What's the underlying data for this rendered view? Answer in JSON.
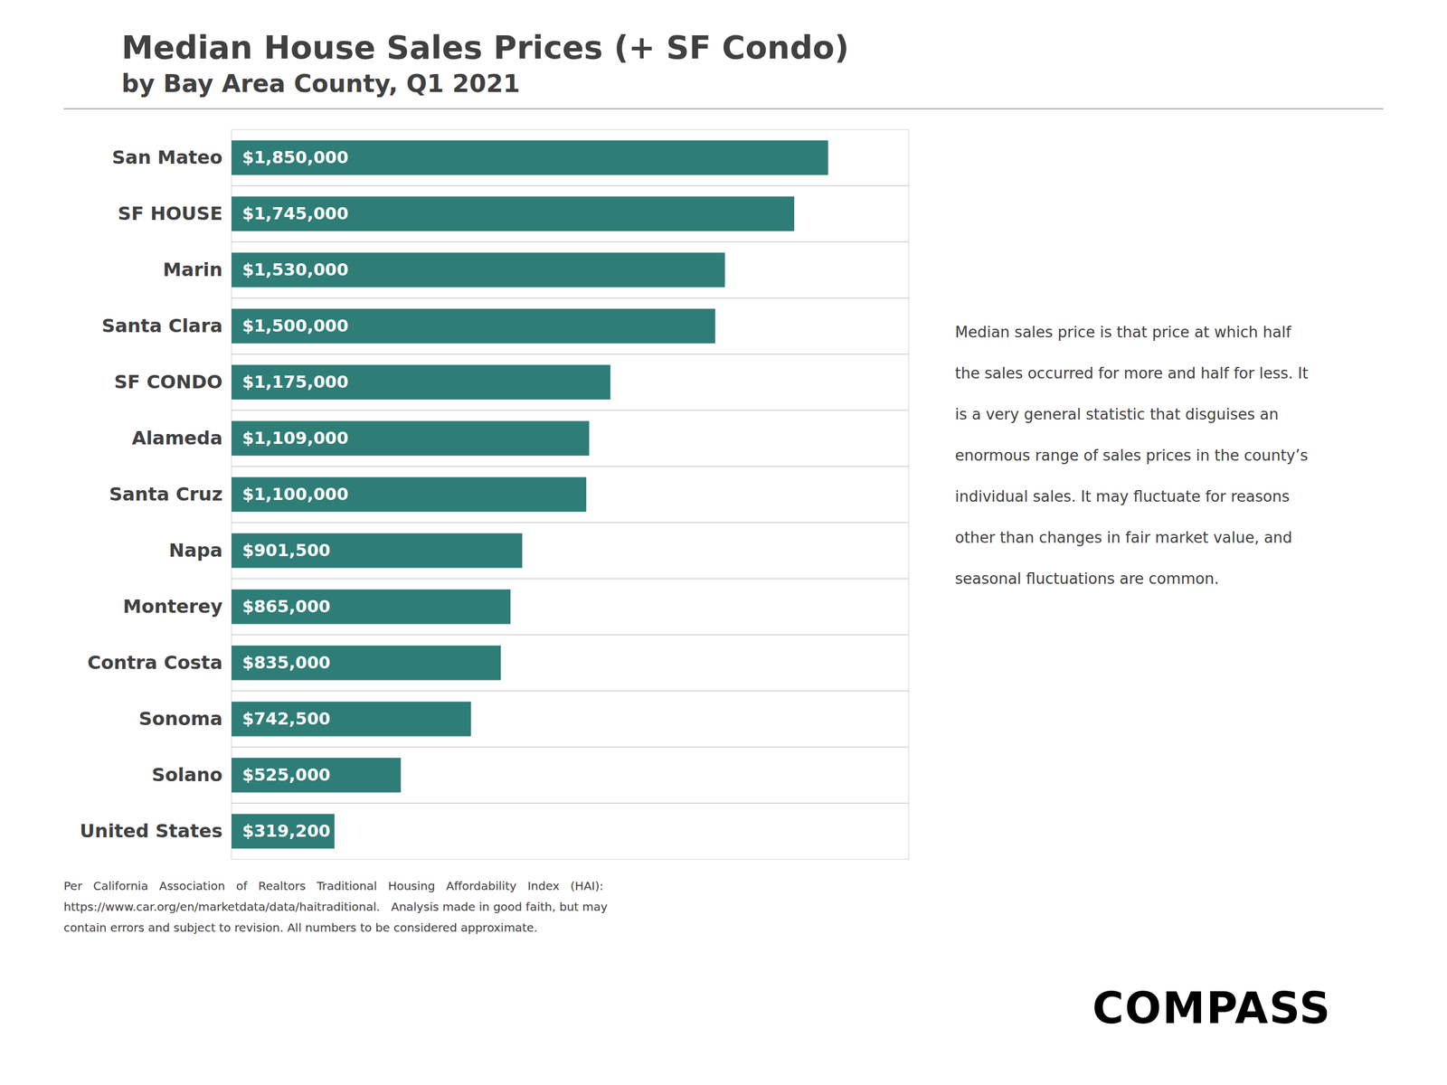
{
  "chart_data": {
    "type": "bar",
    "orientation": "horizontal",
    "title": "Median House Sales Prices (+ SF Condo)",
    "subtitle": "by Bay Area County, Q1 2021",
    "categories": [
      "San Mateo",
      "SF HOUSE",
      "Marin",
      "Santa Clara",
      "SF CONDO",
      "Alameda",
      "Santa Cruz",
      "Napa",
      "Monterey",
      "Contra Costa",
      "Sonoma",
      "Solano",
      "United States"
    ],
    "values": [
      1850000,
      1745000,
      1530000,
      1500000,
      1175000,
      1109000,
      1100000,
      901500,
      865000,
      835000,
      742500,
      525000,
      319200
    ],
    "value_labels": [
      "$1,850,000",
      "$1,745,000",
      "$1,530,000",
      "$1,500,000",
      "$1,175,000",
      "$1,109,000",
      "$1,100,000",
      "$901,500",
      "$865,000",
      "$835,000",
      "$742,500",
      "$525,000",
      "$319,200"
    ],
    "data_labels": true,
    "color": "#2E7D77",
    "xlim": [
      0,
      2100000
    ],
    "tick_labels": "y",
    "grid": false,
    "annotations": [
      "Median sales price is that price at which half",
      "the sales occurred for more and half for less. It",
      "is a very general statistic that disguises an",
      "enormous range of sales prices in the county’s",
      "individual sales. It may fluctuate for reasons",
      "other than changes in fair market value, and",
      "seasonal fluctuations are common."
    ],
    "footer": [
      "Per   California   Association   of   Realtors   Traditional   Housing   Affordability   Index   (HAI):",
      "https://www.car.org/en/marketdata/data/haitraditional.   Analysis made in good faith, but may",
      "contain errors and subject to revision. All numbers to be considered approximate."
    ],
    "logo": "COMPASS"
  }
}
